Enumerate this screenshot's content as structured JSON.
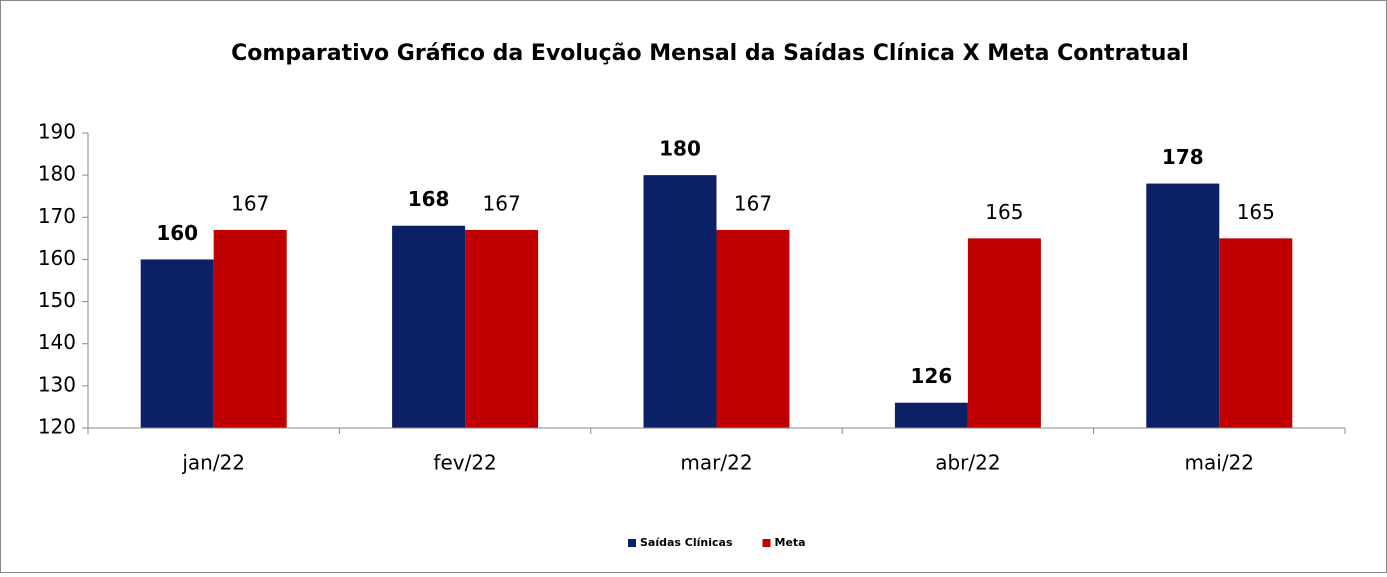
{
  "chart_data": {
    "type": "bar",
    "title": "Comparativo Gráfico da Evolução Mensal da Saídas Clínica X Meta Contratual",
    "categories": [
      "jan/22",
      "fev/22",
      "mar/22",
      "abr/22",
      "mai/22"
    ],
    "series": [
      {
        "name": "Saídas Clínicas",
        "color": "#0b2066",
        "values": [
          160,
          168,
          180,
          126,
          178
        ]
      },
      {
        "name": "Meta",
        "color": "#c00000",
        "values": [
          167,
          167,
          167,
          165,
          165
        ]
      }
    ],
    "ylim": [
      120,
      190
    ],
    "yticks": [
      120,
      130,
      140,
      150,
      160,
      170,
      180,
      190
    ],
    "legend": "bottom"
  }
}
